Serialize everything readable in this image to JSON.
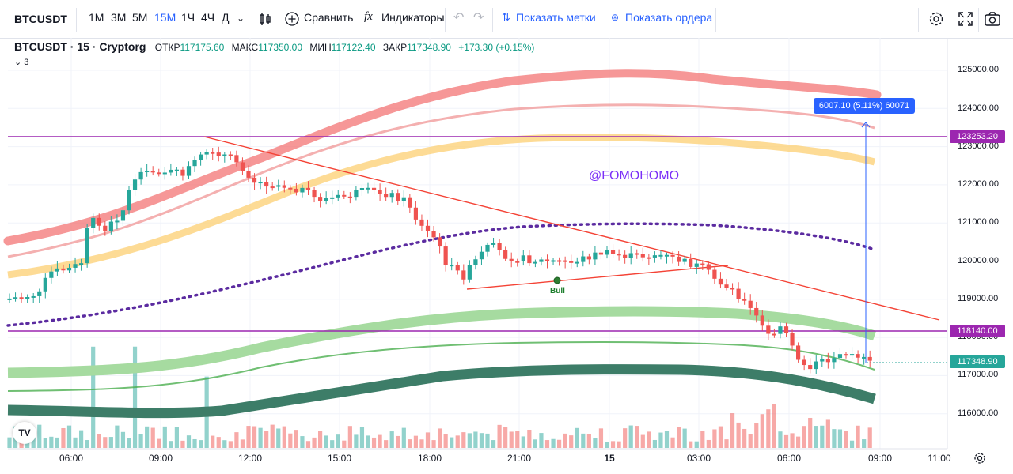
{
  "toolbar": {
    "symbol": "BTCUSDT",
    "intervals": [
      "1М",
      "3М",
      "5М",
      "15М",
      "1Ч",
      "4Ч",
      "Д"
    ],
    "active_interval": "15М",
    "compare_label": "Сравнить",
    "indicators_label": "Индикаторы",
    "show_marks_label": "Показать метки",
    "show_orders_label": "Показать ордера"
  },
  "legend": {
    "title": "BTCUSDT · 15 · Cryptorg",
    "open_label": "ОТКР",
    "open": "117175.60",
    "high_label": "МАКС",
    "high": "117350.00",
    "low_label": "МИН",
    "low": "117122.40",
    "close_label": "ЗАКР",
    "close": "117348.90",
    "change": "+173.30 (+0.15%)",
    "collapse_count": "3"
  },
  "price_axis": [
    "125000.00",
    "124000.00",
    "123000.00",
    "122000.00",
    "121000.00",
    "120000.00",
    "119000.00",
    "118000.00",
    "117000.00",
    "116000.00"
  ],
  "price_labels": {
    "level_upper": "123253.20",
    "level_lower": "118140.00",
    "last_price": "117348.90"
  },
  "time_axis": [
    "06:00",
    "09:00",
    "12:00",
    "15:00",
    "18:00",
    "21:00",
    "15",
    "03:00",
    "06:00",
    "09:00",
    "11:00"
  ],
  "measure_label": "6007.10 (5.11%) 60071",
  "watermark": "@FOMOHOMO",
  "bull_label": "Bull",
  "colors": {
    "up": "#26a69a",
    "down": "#ef5350",
    "accent": "#2962ff",
    "level": "#9c27b0"
  }
}
